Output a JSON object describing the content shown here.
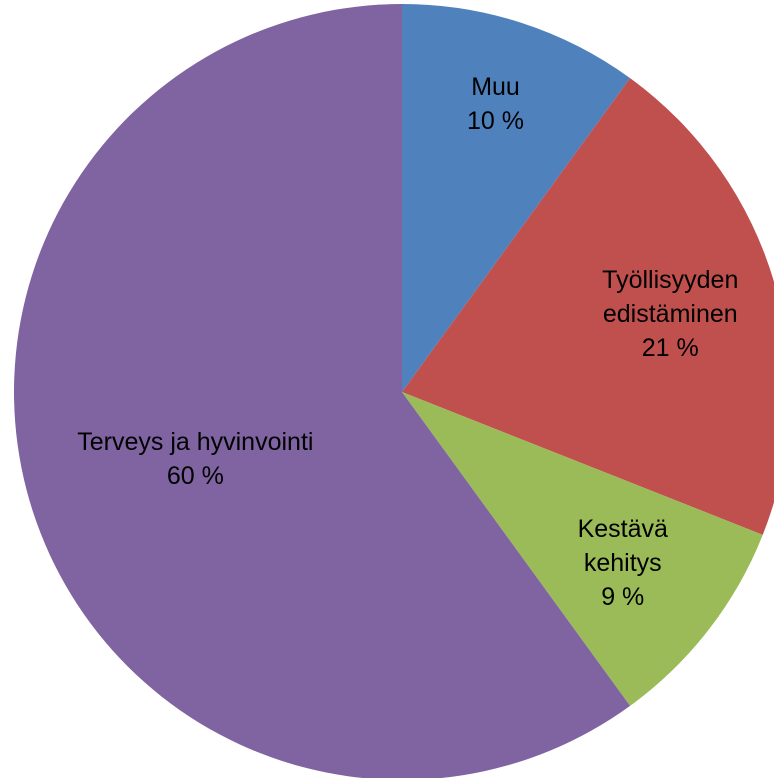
{
  "chart_data": {
    "type": "pie",
    "categories": [
      "Muu",
      "Työllisyyden edistäminen",
      "Kestävä kehitys",
      "Terveys ja hyvinvointi"
    ],
    "values": [
      10,
      21,
      9,
      60
    ],
    "value_labels": [
      "10 %",
      "21 %",
      "9 %",
      "60 %"
    ],
    "colors": [
      "#4f81bd",
      "#c0504d",
      "#9bbb59",
      "#8064a2"
    ]
  }
}
